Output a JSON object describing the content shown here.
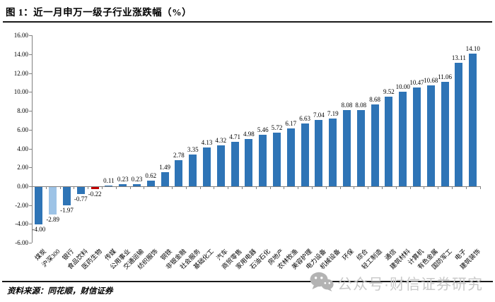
{
  "figure": {
    "title": "图 1：近一月申万一级子行业涨跌幅（%）",
    "source": "资料来源：同花顺，财信证券",
    "watermark": "公众号·财信证券研究"
  },
  "chart_data": {
    "type": "bar",
    "title": "近一月申万一级子行业涨跌幅（%）",
    "categories": [
      "煤炭",
      "沪深300",
      "银行",
      "食品饮料",
      "医药生物",
      "传媒",
      "公用事业",
      "交通运输",
      "纺织服饰",
      "钢铁",
      "非银金融",
      "社会服务",
      "基础化工",
      "汽车",
      "商贸零售",
      "家用电器",
      "石油石化",
      "房地产",
      "农林牧渔",
      "美容护理",
      "电力设备",
      "机械设备",
      "环保",
      "综合",
      "轻工制造",
      "通信",
      "建筑材料",
      "计算机",
      "有色金属",
      "国防军工",
      "电子",
      "建筑装饰"
    ],
    "values": [
      -4.0,
      -2.89,
      -1.97,
      -0.77,
      -0.22,
      0.11,
      0.23,
      0.23,
      0.62,
      1.49,
      2.78,
      3.35,
      4.13,
      4.32,
      4.71,
      4.98,
      5.46,
      5.72,
      6.17,
      6.63,
      7.04,
      7.19,
      8.08,
      8.08,
      8.68,
      9.52,
      10.0,
      10.47,
      10.68,
      11.06,
      13.11,
      14.1
    ],
    "xlabel": "",
    "ylabel": "",
    "ylim": [
      -6,
      16
    ],
    "ytick_step": 2,
    "grid": false,
    "legend_position": "none",
    "value_labels": true,
    "bar_color_default": "#2E74B6",
    "bar_color_overrides": {
      "1": "#9DC3E6",
      "4": "#C00000"
    },
    "axis_color": "#808080"
  }
}
